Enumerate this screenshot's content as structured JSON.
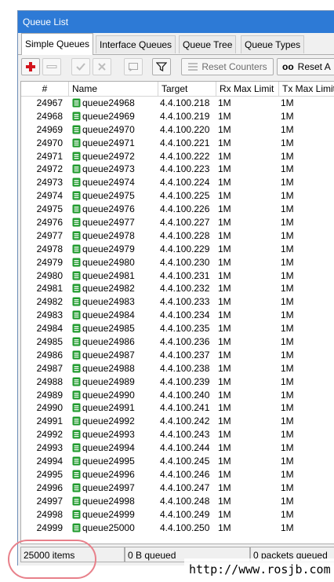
{
  "window": {
    "title": "Queue List"
  },
  "tabs": [
    {
      "label": "Simple Queues",
      "active": true
    },
    {
      "label": "Interface Queues"
    },
    {
      "label": "Queue Tree"
    },
    {
      "label": "Queue Types"
    }
  ],
  "toolbar": {
    "add_icon": "plus-icon",
    "remove_icon": "minus-icon",
    "enable_icon": "check-icon",
    "disable_icon": "cross-icon",
    "comment_icon": "comment-icon",
    "filter_icon": "filter-icon",
    "reset_counters_label": "Reset Counters",
    "reset_all_label": "Reset A",
    "reset_all_prefix": "oo"
  },
  "table": {
    "columns": [
      "#",
      "Name",
      "Target",
      "Rx Max Limit",
      "Tx Max Limit"
    ],
    "rows": [
      {
        "num": "24967",
        "name": "queue24968",
        "target": "4.4.100.218",
        "rx": "1M",
        "tx": "1M"
      },
      {
        "num": "24968",
        "name": "queue24969",
        "target": "4.4.100.219",
        "rx": "1M",
        "tx": "1M"
      },
      {
        "num": "24969",
        "name": "queue24970",
        "target": "4.4.100.220",
        "rx": "1M",
        "tx": "1M"
      },
      {
        "num": "24970",
        "name": "queue24971",
        "target": "4.4.100.221",
        "rx": "1M",
        "tx": "1M"
      },
      {
        "num": "24971",
        "name": "queue24972",
        "target": "4.4.100.222",
        "rx": "1M",
        "tx": "1M"
      },
      {
        "num": "24972",
        "name": "queue24973",
        "target": "4.4.100.223",
        "rx": "1M",
        "tx": "1M"
      },
      {
        "num": "24973",
        "name": "queue24974",
        "target": "4.4.100.224",
        "rx": "1M",
        "tx": "1M"
      },
      {
        "num": "24974",
        "name": "queue24975",
        "target": "4.4.100.225",
        "rx": "1M",
        "tx": "1M"
      },
      {
        "num": "24975",
        "name": "queue24976",
        "target": "4.4.100.226",
        "rx": "1M",
        "tx": "1M"
      },
      {
        "num": "24976",
        "name": "queue24977",
        "target": "4.4.100.227",
        "rx": "1M",
        "tx": "1M"
      },
      {
        "num": "24977",
        "name": "queue24978",
        "target": "4.4.100.228",
        "rx": "1M",
        "tx": "1M"
      },
      {
        "num": "24978",
        "name": "queue24979",
        "target": "4.4.100.229",
        "rx": "1M",
        "tx": "1M"
      },
      {
        "num": "24979",
        "name": "queue24980",
        "target": "4.4.100.230",
        "rx": "1M",
        "tx": "1M"
      },
      {
        "num": "24980",
        "name": "queue24981",
        "target": "4.4.100.231",
        "rx": "1M",
        "tx": "1M"
      },
      {
        "num": "24981",
        "name": "queue24982",
        "target": "4.4.100.232",
        "rx": "1M",
        "tx": "1M"
      },
      {
        "num": "24982",
        "name": "queue24983",
        "target": "4.4.100.233",
        "rx": "1M",
        "tx": "1M"
      },
      {
        "num": "24983",
        "name": "queue24984",
        "target": "4.4.100.234",
        "rx": "1M",
        "tx": "1M"
      },
      {
        "num": "24984",
        "name": "queue24985",
        "target": "4.4.100.235",
        "rx": "1M",
        "tx": "1M"
      },
      {
        "num": "24985",
        "name": "queue24986",
        "target": "4.4.100.236",
        "rx": "1M",
        "tx": "1M"
      },
      {
        "num": "24986",
        "name": "queue24987",
        "target": "4.4.100.237",
        "rx": "1M",
        "tx": "1M"
      },
      {
        "num": "24987",
        "name": "queue24988",
        "target": "4.4.100.238",
        "rx": "1M",
        "tx": "1M"
      },
      {
        "num": "24988",
        "name": "queue24989",
        "target": "4.4.100.239",
        "rx": "1M",
        "tx": "1M"
      },
      {
        "num": "24989",
        "name": "queue24990",
        "target": "4.4.100.240",
        "rx": "1M",
        "tx": "1M"
      },
      {
        "num": "24990",
        "name": "queue24991",
        "target": "4.4.100.241",
        "rx": "1M",
        "tx": "1M"
      },
      {
        "num": "24991",
        "name": "queue24992",
        "target": "4.4.100.242",
        "rx": "1M",
        "tx": "1M"
      },
      {
        "num": "24992",
        "name": "queue24993",
        "target": "4.4.100.243",
        "rx": "1M",
        "tx": "1M"
      },
      {
        "num": "24993",
        "name": "queue24994",
        "target": "4.4.100.244",
        "rx": "1M",
        "tx": "1M"
      },
      {
        "num": "24994",
        "name": "queue24995",
        "target": "4.4.100.245",
        "rx": "1M",
        "tx": "1M"
      },
      {
        "num": "24995",
        "name": "queue24996",
        "target": "4.4.100.246",
        "rx": "1M",
        "tx": "1M"
      },
      {
        "num": "24996",
        "name": "queue24997",
        "target": "4.4.100.247",
        "rx": "1M",
        "tx": "1M"
      },
      {
        "num": "24997",
        "name": "queue24998",
        "target": "4.4.100.248",
        "rx": "1M",
        "tx": "1M"
      },
      {
        "num": "24998",
        "name": "queue24999",
        "target": "4.4.100.249",
        "rx": "1M",
        "tx": "1M"
      },
      {
        "num": "24999",
        "name": "queue25000",
        "target": "4.4.100.250",
        "rx": "1M",
        "tx": "1M"
      }
    ]
  },
  "status": {
    "items": "25000 items",
    "bytes_queued": "0 B queued",
    "packets_queued": "0 packets queued"
  },
  "watermark": "http://www.rosjb.com",
  "colors": {
    "titlebar": "#2d7ad6",
    "add_red": "#d3141c",
    "queue_icon_green": "#1f9a2c",
    "highlight_ring": "#e8808a"
  }
}
